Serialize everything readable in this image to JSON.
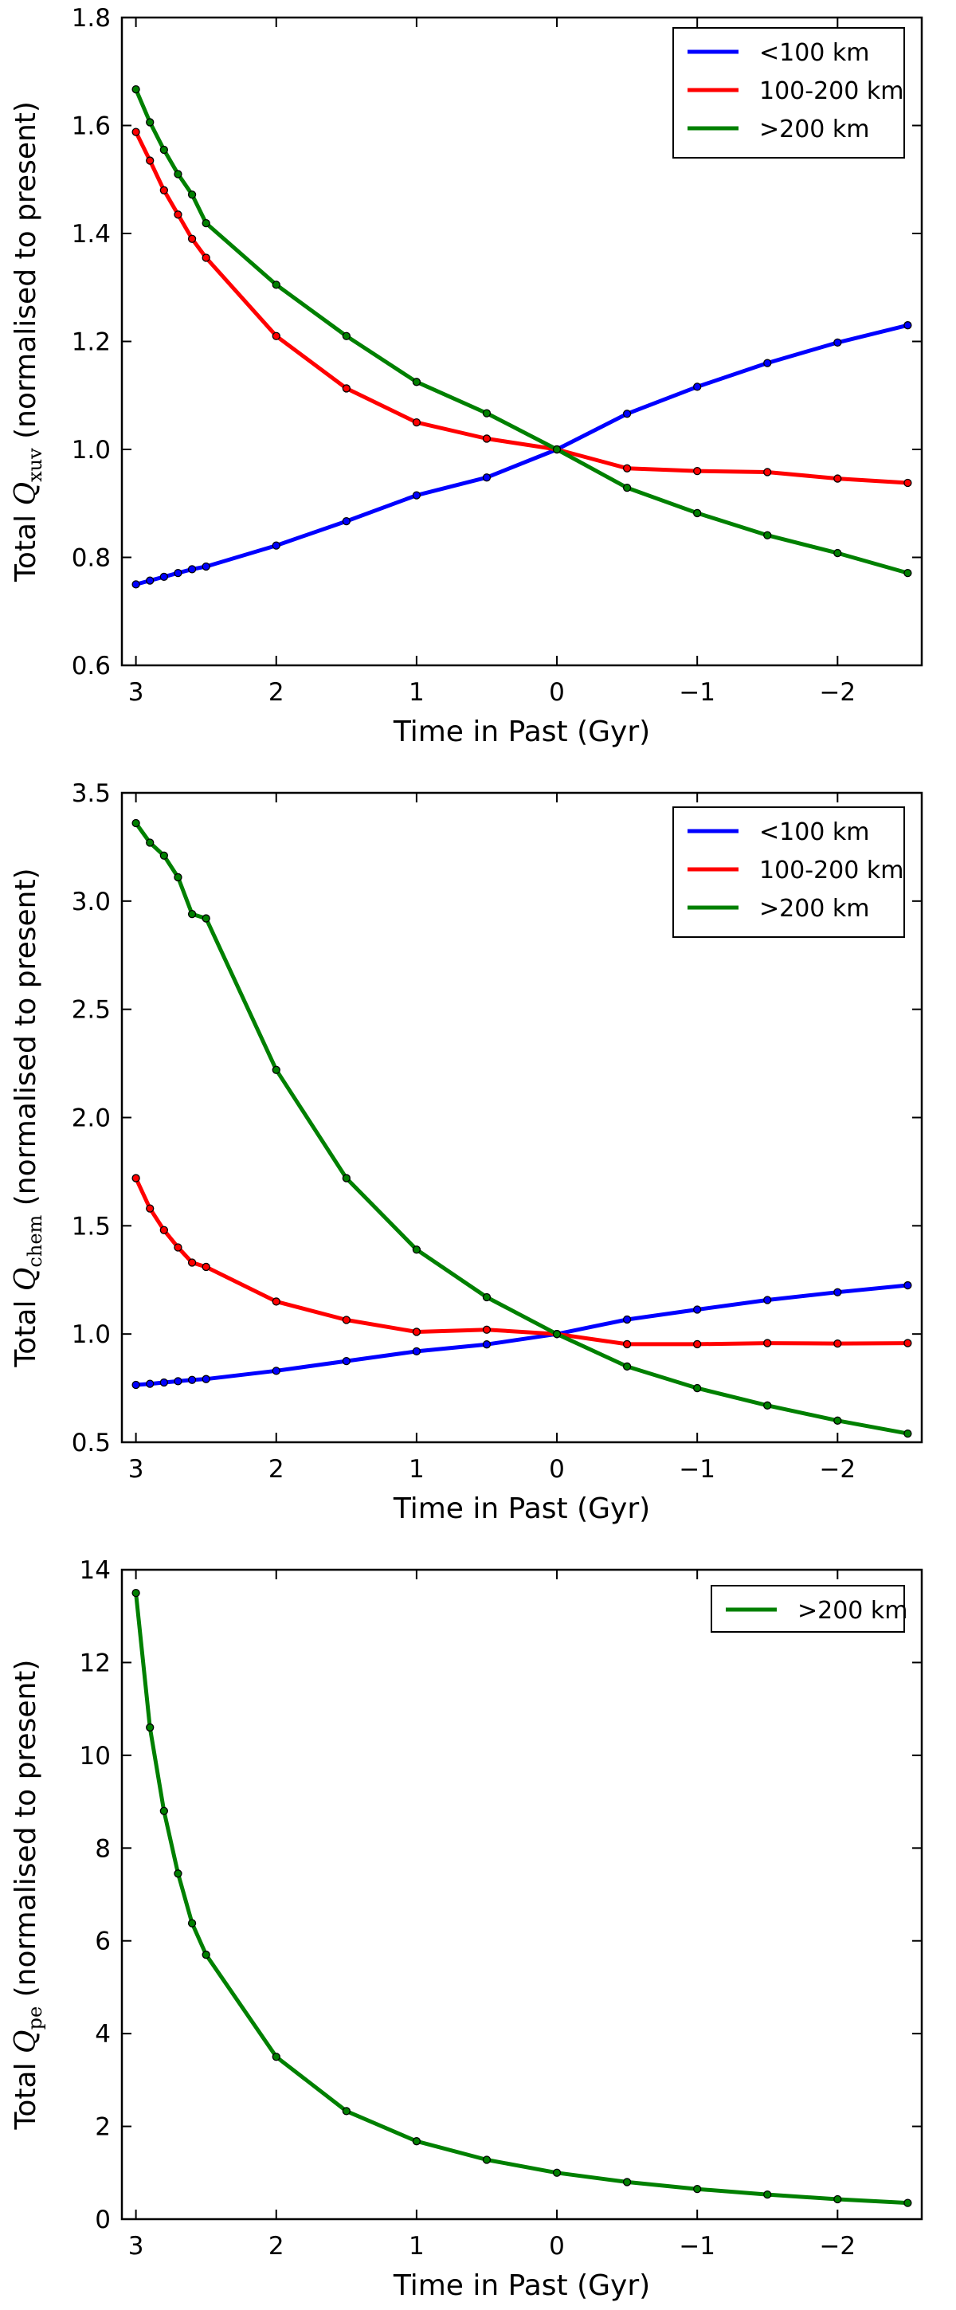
{
  "chart_data": [
    {
      "type": "line",
      "xlabel": "Time in Past (Gyr)",
      "ylabel_prefix": "Total ",
      "ylabel_symbol": "Q",
      "ylabel_subscript": "xuv",
      "ylabel_suffix": " (normalised to present)",
      "xlim": [
        3.1,
        -2.6
      ],
      "ylim": [
        0.6,
        1.8
      ],
      "xticks": [
        3,
        2,
        1,
        0,
        -1,
        -2
      ],
      "xtick_labels": [
        "3",
        "2",
        "1",
        "0",
        "−1",
        "−2"
      ],
      "yticks": [
        0.6,
        0.8,
        1.0,
        1.2,
        1.4,
        1.6,
        1.8
      ],
      "ytick_labels": [
        "0.6",
        "0.8",
        "1.0",
        "1.2",
        "1.4",
        "1.6",
        "1.8"
      ],
      "legend_position": "top-right",
      "series": [
        {
          "name": "<100 km",
          "color": "#0000ff",
          "x": [
            3.0,
            2.9,
            2.8,
            2.7,
            2.6,
            2.5,
            2.0,
            1.5,
            1.0,
            0.5,
            0.0,
            -0.5,
            -1.0,
            -1.5,
            -2.0,
            -2.5
          ],
          "y": [
            0.75,
            0.757,
            0.764,
            0.771,
            0.778,
            0.783,
            0.822,
            0.867,
            0.915,
            0.948,
            1.0,
            1.066,
            1.116,
            1.16,
            1.198,
            1.23
          ]
        },
        {
          "name": "100-200 km",
          "color": "#ff0000",
          "x": [
            3.0,
            2.9,
            2.8,
            2.7,
            2.6,
            2.5,
            2.0,
            1.5,
            1.0,
            0.5,
            0.0,
            -0.5,
            -1.0,
            -1.5,
            -2.0,
            -2.5
          ],
          "y": [
            1.588,
            1.535,
            1.48,
            1.435,
            1.39,
            1.355,
            1.21,
            1.113,
            1.05,
            1.02,
            1.0,
            0.965,
            0.96,
            0.958,
            0.946,
            0.938
          ]
        },
        {
          "name": ">200 km",
          "color": "#008000",
          "x": [
            3.0,
            2.9,
            2.8,
            2.7,
            2.6,
            2.5,
            2.0,
            1.5,
            1.0,
            0.5,
            0.0,
            -0.5,
            -1.0,
            -1.5,
            -2.0,
            -2.5
          ],
          "y": [
            1.667,
            1.606,
            1.555,
            1.51,
            1.472,
            1.419,
            1.305,
            1.21,
            1.125,
            1.067,
            1.0,
            0.929,
            0.882,
            0.841,
            0.808,
            0.771
          ]
        }
      ]
    },
    {
      "type": "line",
      "xlabel": "Time in Past (Gyr)",
      "ylabel_prefix": "Total ",
      "ylabel_symbol": "Q",
      "ylabel_subscript": "chem",
      "ylabel_suffix": " (normalised to present)",
      "xlim": [
        3.1,
        -2.6
      ],
      "ylim": [
        0.5,
        3.5
      ],
      "xticks": [
        3,
        2,
        1,
        0,
        -1,
        -2
      ],
      "xtick_labels": [
        "3",
        "2",
        "1",
        "0",
        "−1",
        "−2"
      ],
      "yticks": [
        0.5,
        1.0,
        1.5,
        2.0,
        2.5,
        3.0,
        3.5
      ],
      "ytick_labels": [
        "0.5",
        "1.0",
        "1.5",
        "2.0",
        "2.5",
        "3.0",
        "3.5"
      ],
      "legend_position": "top-right",
      "series": [
        {
          "name": "<100 km",
          "color": "#0000ff",
          "x": [
            3.0,
            2.9,
            2.8,
            2.7,
            2.6,
            2.5,
            2.0,
            1.5,
            1.0,
            0.5,
            0.0,
            -0.5,
            -1.0,
            -1.5,
            -2.0,
            -2.5
          ],
          "y": [
            0.765,
            0.77,
            0.776,
            0.782,
            0.788,
            0.792,
            0.83,
            0.875,
            0.92,
            0.952,
            1.0,
            1.067,
            1.113,
            1.157,
            1.193,
            1.225
          ]
        },
        {
          "name": "100-200 km",
          "color": "#ff0000",
          "x": [
            3.0,
            2.9,
            2.8,
            2.7,
            2.6,
            2.5,
            2.0,
            1.5,
            1.0,
            0.5,
            0.0,
            -0.5,
            -1.0,
            -1.5,
            -2.0,
            -2.5
          ],
          "y": [
            1.72,
            1.58,
            1.48,
            1.4,
            1.33,
            1.31,
            1.15,
            1.065,
            1.01,
            1.02,
            1.0,
            0.953,
            0.953,
            0.958,
            0.956,
            0.958
          ]
        },
        {
          "name": ">200 km",
          "color": "#008000",
          "x": [
            3.0,
            2.9,
            2.8,
            2.7,
            2.6,
            2.5,
            2.0,
            1.5,
            1.0,
            0.5,
            0.0,
            -0.5,
            -1.0,
            -1.5,
            -2.0,
            -2.5
          ],
          "y": [
            3.36,
            3.27,
            3.21,
            3.11,
            2.94,
            2.92,
            2.22,
            1.72,
            1.39,
            1.17,
            1.0,
            0.85,
            0.75,
            0.67,
            0.6,
            0.54
          ]
        }
      ]
    },
    {
      "type": "line",
      "xlabel": "Time in Past (Gyr)",
      "ylabel_prefix": "Total ",
      "ylabel_symbol": "Q",
      "ylabel_subscript": "pe",
      "ylabel_suffix": " (normalised to present)",
      "xlim": [
        3.1,
        -2.6
      ],
      "ylim": [
        0,
        14
      ],
      "xticks": [
        3,
        2,
        1,
        0,
        -1,
        -2
      ],
      "xtick_labels": [
        "3",
        "2",
        "1",
        "0",
        "−1",
        "−2"
      ],
      "yticks": [
        0,
        2,
        4,
        6,
        8,
        10,
        12,
        14
      ],
      "ytick_labels": [
        "0",
        "2",
        "4",
        "6",
        "8",
        "10",
        "12",
        "14"
      ],
      "legend_position": "top-right",
      "series": [
        {
          "name": ">200 km",
          "color": "#008000",
          "x": [
            3.0,
            2.9,
            2.8,
            2.7,
            2.6,
            2.5,
            2.0,
            1.5,
            1.0,
            0.5,
            0.0,
            -0.5,
            -1.0,
            -1.5,
            -2.0,
            -2.5
          ],
          "y": [
            13.5,
            10.6,
            8.8,
            7.45,
            6.38,
            5.7,
            3.5,
            2.33,
            1.68,
            1.28,
            1.0,
            0.8,
            0.65,
            0.53,
            0.43,
            0.35
          ]
        }
      ]
    }
  ]
}
